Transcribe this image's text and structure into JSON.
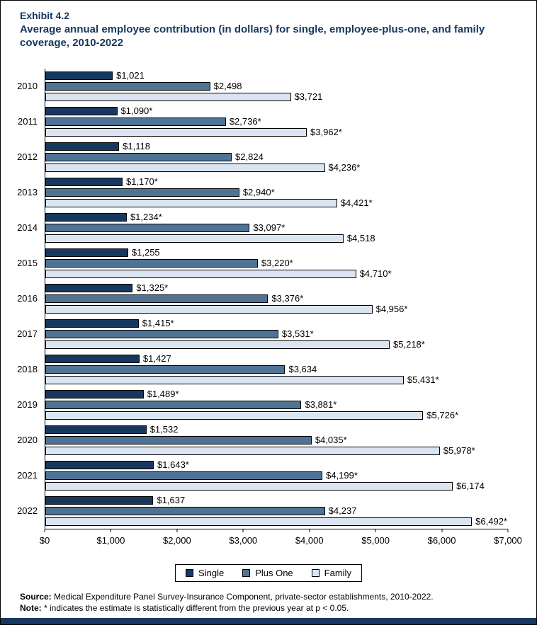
{
  "title": {
    "exhibit": "Exhibit 4.2",
    "text": "Average annual employee contribution (in dollars) for single, employee-plus-one, and family coverage, 2010-2022"
  },
  "colors": {
    "title_text": "#17375E",
    "bottom_strip": "#17375E",
    "border": "#000000"
  },
  "chart_data": {
    "type": "bar",
    "orientation": "horizontal",
    "title": "Average annual employee contribution (in dollars) for single, employee-plus-one, and family coverage, 2010-2022",
    "categories": [
      "2010",
      "2011",
      "2012",
      "2013",
      "2014",
      "2015",
      "2016",
      "2017",
      "2018",
      "2019",
      "2020",
      "2021",
      "2022"
    ],
    "series": [
      {
        "name": "Single",
        "color": "#17375E",
        "values": [
          1021,
          1090,
          1118,
          1170,
          1234,
          1255,
          1325,
          1415,
          1427,
          1489,
          1532,
          1643,
          1637
        ],
        "labels": [
          "$1,021",
          "$1,090*",
          "$1,118",
          "$1,170*",
          "$1,234*",
          "$1,255",
          "$1,325*",
          "$1,415*",
          "$1,427",
          "$1,489*",
          "$1,532",
          "$1,643*",
          "$1,637"
        ]
      },
      {
        "name": "Plus One",
        "color": "#4F7394",
        "values": [
          2498,
          2736,
          2824,
          2940,
          3097,
          3220,
          3376,
          3531,
          3634,
          3881,
          4035,
          4199,
          4237
        ],
        "labels": [
          "$2,498",
          "$2,736*",
          "$2,824",
          "$2,940*",
          "$3,097*",
          "$3,220*",
          "$3,376*",
          "$3,531*",
          "$3,634",
          "$3,881*",
          "$4,035*",
          "$4,199*",
          "$4,237"
        ]
      },
      {
        "name": "Family",
        "color": "#DBE5F1",
        "values": [
          3721,
          3962,
          4236,
          4421,
          4518,
          4710,
          4956,
          5218,
          5431,
          5726,
          5978,
          6174,
          6492
        ],
        "labels": [
          "$3,721",
          "$3,962*",
          "$4,236*",
          "$4,421*",
          "$4,518",
          "$4,710*",
          "$4,956*",
          "$5,218*",
          "$5,431*",
          "$5,726*",
          "$5,978*",
          "$6,174",
          "$6,492*"
        ]
      }
    ],
    "x_ticks": [
      "$0",
      "$1,000",
      "$2,000",
      "$3,000",
      "$4,000",
      "$5,000",
      "$6,000",
      "$7,000"
    ],
    "xlim": [
      0,
      7000
    ],
    "grid": false,
    "legend": [
      "Single",
      "Plus One",
      "Family"
    ],
    "legend_position": "bottom"
  },
  "footer": {
    "source_label": "Source:",
    "source_text": " Medical Expenditure Panel Survey-Insurance Component, private-sector establishments, 2010-2022.",
    "note_label": "Note:",
    "note_text": " * indicates the estimate is statistically different from the previous year at p < 0.05."
  }
}
